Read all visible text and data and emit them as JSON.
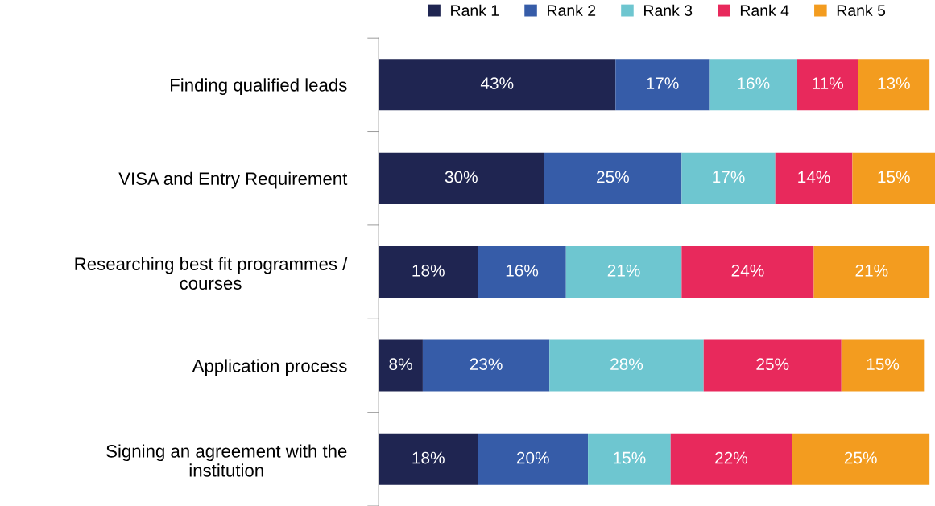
{
  "chart_data": {
    "type": "bar",
    "orientation": "horizontal",
    "stacked": true,
    "legend": "top",
    "grid": false,
    "categories": [
      "Finding qualified leads",
      "VISA and Entry Requirement",
      "Researching best fit programmes /\ncourses",
      "Application process",
      "Signing an agreement with the\ninstitution"
    ],
    "series": [
      {
        "name": "Rank 1",
        "color": "#1f2551",
        "values": [
          43,
          30,
          18,
          8,
          18
        ],
        "value_labels": [
          "43%",
          "30%",
          "18%",
          "8%",
          "18%"
        ]
      },
      {
        "name": "Rank 2",
        "color": "#365ca8",
        "values": [
          17,
          25,
          16,
          23,
          20
        ],
        "value_labels": [
          "17%",
          "25%",
          "16%",
          "23%",
          "20%"
        ]
      },
      {
        "name": "Rank 3",
        "color": "#6ec6d0",
        "values": [
          16,
          17,
          21,
          28,
          15
        ],
        "value_labels": [
          "16%",
          "17%",
          "21%",
          "28%",
          "15%"
        ]
      },
      {
        "name": "Rank 4",
        "color": "#e8295c",
        "values": [
          11,
          14,
          24,
          25,
          22
        ],
        "value_labels": [
          "11%",
          "14%",
          "24%",
          "25%",
          "22%"
        ]
      },
      {
        "name": "Rank 5",
        "color": "#f39c1f",
        "values": [
          13,
          15,
          21,
          15,
          25
        ],
        "value_labels": [
          "13%",
          "15%",
          "21%",
          "15%",
          "25%"
        ]
      }
    ]
  }
}
